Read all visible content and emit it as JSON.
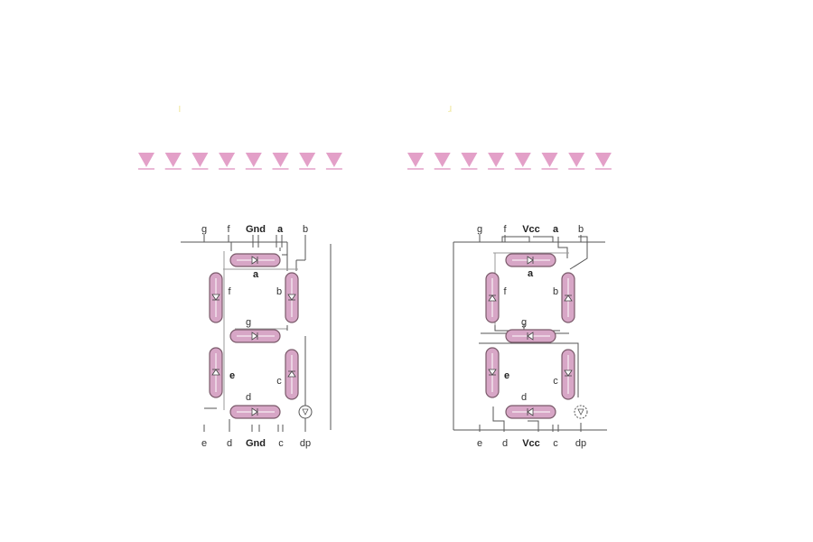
{
  "colors": {
    "segment_fill": "#d7a6c6",
    "segment_stroke": "#7a5a6a",
    "indicator_fill": "#e3a0c8"
  },
  "indicators": {
    "left_count": 8,
    "right_count": 8
  },
  "marks": {
    "left": "ı",
    "right": "ɹ"
  },
  "common_cathode": {
    "top_pins": [
      "g",
      "f",
      "Gnd",
      "a",
      "b"
    ],
    "bottom_pins": [
      "e",
      "d",
      "Gnd",
      "c",
      "dp"
    ],
    "segments": {
      "a": "a",
      "b": "b",
      "c": "c",
      "d": "d",
      "e": "e",
      "f": "f",
      "g": "g"
    }
  },
  "common_anode": {
    "top_pins": [
      "g",
      "f",
      "Vcc",
      "a",
      "b"
    ],
    "bottom_pins": [
      "e",
      "d",
      "Vcc",
      "c",
      "dp"
    ],
    "segments": {
      "a": "a",
      "b": "b",
      "c": "c",
      "d": "d",
      "e": "e",
      "f": "f",
      "g": "g"
    }
  }
}
